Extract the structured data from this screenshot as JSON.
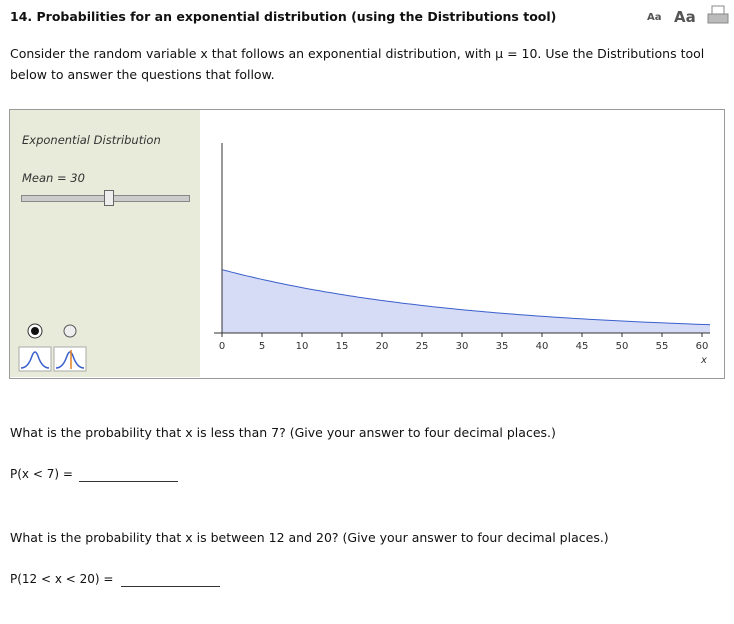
{
  "header": {
    "title": "14. Probabilities for an exponential distribution (using the Distributions tool)",
    "font_small": "Aa",
    "font_large": "Aa"
  },
  "intro": "Consider the random variable x that follows an exponential distribution, with μ = 10. Use the Distributions tool below to answer the questions that follow.",
  "chart_data": {
    "type": "area",
    "title": "Exponential Distribution",
    "mean": {
      "value": 30,
      "label": "Mean = 30"
    },
    "color": "#3a5fcd",
    "fill": "#d6dcf5",
    "xlim": [
      -1,
      61
    ],
    "xticks": [
      0,
      5,
      10,
      15,
      20,
      25,
      30,
      35,
      40,
      45,
      50,
      55,
      60
    ],
    "xlabel": "x",
    "ylim": [
      0,
      0.1
    ]
  },
  "questions": [
    {
      "text": "What is the probability that x is less than 7? (Give your answer to four decimal places.)",
      "prompt": "P(x < 7) ="
    },
    {
      "text": "What is the probability that x is between 12 and 20? (Give your answer to four decimal places.)",
      "prompt": "P(12 < x < 20) ="
    }
  ]
}
